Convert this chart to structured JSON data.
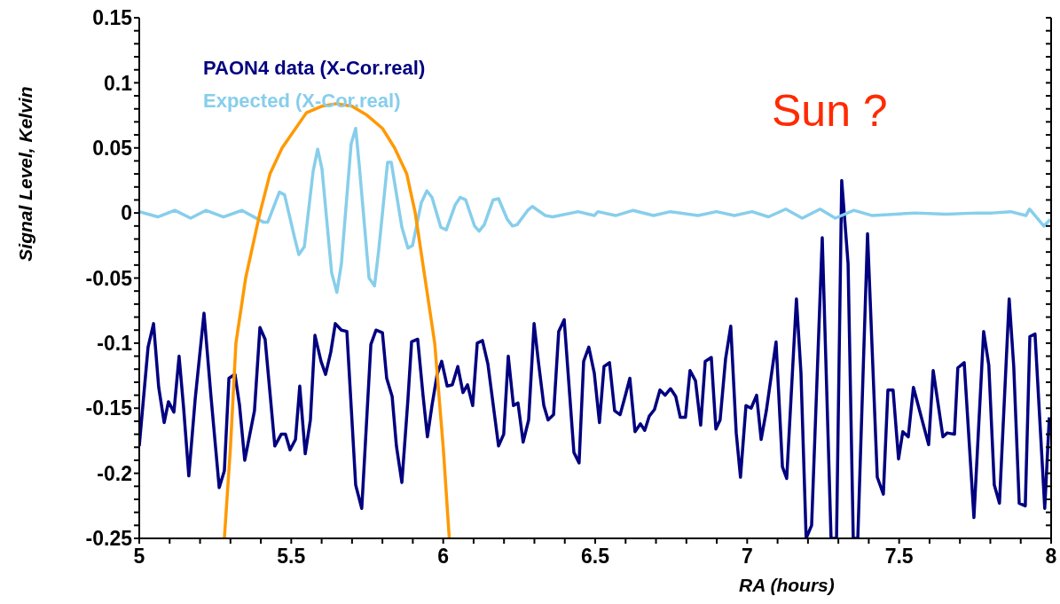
{
  "chart_data": {
    "type": "line",
    "xlabel": "RA (hours)",
    "ylabel": "Signal Level, Kelvin",
    "xlim": [
      5,
      8
    ],
    "ylim": [
      -0.25,
      0.15
    ],
    "xticks": [
      5,
      {
        "value": 5.1,
        "label": null
      },
      {
        "value": 5.2,
        "label": null
      },
      {
        "value": 5.3,
        "label": null
      },
      {
        "value": 5.4,
        "label": null
      },
      5.5,
      {
        "value": 5.6,
        "label": null
      },
      {
        "value": 5.7,
        "label": null
      },
      {
        "value": 5.8,
        "label": null
      },
      {
        "value": 5.9,
        "label": null
      },
      6,
      {
        "value": 6.1,
        "label": null
      },
      {
        "value": 6.2,
        "label": null
      },
      {
        "value": 6.3,
        "label": null
      },
      {
        "value": 6.4,
        "label": null
      },
      6.5,
      {
        "value": 6.6,
        "label": null
      },
      {
        "value": 6.7,
        "label": null
      },
      {
        "value": 6.8,
        "label": null
      },
      {
        "value": 6.9,
        "label": null
      },
      7,
      {
        "value": 7.1,
        "label": null
      },
      {
        "value": 7.2,
        "label": null
      },
      {
        "value": 7.3,
        "label": null
      },
      {
        "value": 7.4,
        "label": null
      },
      7.5,
      {
        "value": 7.6,
        "label": null
      },
      {
        "value": 7.7,
        "label": null
      },
      {
        "value": 7.8,
        "label": null
      },
      {
        "value": 7.9,
        "label": null
      },
      8
    ],
    "yticks": [
      -0.25,
      {
        "value": -0.24,
        "label": null
      },
      {
        "value": -0.23,
        "label": null
      },
      {
        "value": -0.22,
        "label": null
      },
      {
        "value": -0.21,
        "label": null
      },
      -0.2,
      {
        "value": -0.19,
        "label": null
      },
      {
        "value": -0.18,
        "label": null
      },
      {
        "value": -0.17,
        "label": null
      },
      {
        "value": -0.16,
        "label": null
      },
      -0.15,
      {
        "value": -0.14,
        "label": null
      },
      {
        "value": -0.13,
        "label": null
      },
      {
        "value": -0.12,
        "label": null
      },
      {
        "value": -0.11,
        "label": null
      },
      -0.1,
      {
        "value": -0.09,
        "label": null
      },
      {
        "value": -0.08,
        "label": null
      },
      {
        "value": -0.07,
        "label": null
      },
      {
        "value": -0.06,
        "label": null
      },
      -0.05,
      {
        "value": -0.04,
        "label": null
      },
      {
        "value": -0.03,
        "label": null
      },
      {
        "value": -0.02,
        "label": null
      },
      {
        "value": -0.01,
        "label": null
      },
      0,
      {
        "value": 0.01,
        "label": null
      },
      {
        "value": 0.02,
        "label": null
      },
      {
        "value": 0.03,
        "label": null
      },
      {
        "value": 0.04,
        "label": null
      },
      0.05,
      {
        "value": 0.06,
        "label": null
      },
      {
        "value": 0.07,
        "label": null
      },
      {
        "value": 0.08,
        "label": null
      },
      {
        "value": 0.09,
        "label": null
      },
      0.1,
      {
        "value": 0.11,
        "label": null
      },
      {
        "value": 0.12,
        "label": null
      },
      {
        "value": 0.13,
        "label": null
      },
      {
        "value": 0.14,
        "label": null
      },
      0.15
    ],
    "legend": "top left",
    "annotations": [
      "Sun ?"
    ],
    "series": [
      {
        "name": "PAON4 data (X-Cor.real)",
        "color": "#000080",
        "x": [
          5.0,
          5.029,
          5.047,
          5.064,
          5.082,
          5.096,
          5.114,
          5.131,
          5.146,
          5.163,
          5.184,
          5.213,
          5.236,
          5.263,
          5.28,
          5.295,
          5.315,
          5.33,
          5.347,
          5.379,
          5.397,
          5.414,
          5.446,
          5.467,
          5.481,
          5.496,
          5.514,
          5.528,
          5.546,
          5.563,
          5.578,
          5.598,
          5.613,
          5.63,
          5.645,
          5.665,
          5.683,
          5.712,
          5.732,
          5.762,
          5.779,
          5.8,
          5.814,
          5.832,
          5.846,
          5.864,
          5.884,
          5.896,
          5.916,
          5.934,
          5.948,
          5.963,
          5.98,
          5.995,
          6.013,
          6.03,
          6.048,
          6.065,
          6.08,
          6.097,
          6.112,
          6.129,
          6.147,
          6.182,
          6.199,
          6.214,
          6.231,
          6.246,
          6.263,
          6.281,
          6.299,
          6.313,
          6.331,
          6.345,
          6.363,
          6.38,
          6.398,
          6.43,
          6.447,
          6.462,
          6.479,
          6.497,
          6.514,
          6.529,
          6.547,
          6.564,
          6.582,
          6.596,
          6.614,
          6.631,
          6.649,
          6.663,
          6.678,
          6.695,
          6.713,
          6.73,
          6.748,
          6.765,
          6.78,
          6.797,
          6.812,
          6.83,
          6.847,
          6.862,
          6.882,
          6.897,
          6.911,
          6.929,
          6.946,
          6.964,
          6.978,
          6.996,
          7.013,
          7.031,
          7.046,
          7.063,
          7.095,
          7.116,
          7.13,
          7.162,
          7.177,
          7.194,
          7.212,
          7.247,
          7.276,
          7.294,
          7.311,
          7.332,
          7.349,
          7.364,
          7.396,
          7.428,
          7.448,
          7.463,
          7.48,
          7.498,
          7.512,
          7.53,
          7.547,
          7.597,
          7.612,
          7.644,
          7.658,
          7.682,
          7.693,
          7.714,
          7.746,
          7.778,
          7.795,
          7.813,
          7.83,
          7.862,
          7.877,
          7.895,
          7.915,
          7.93,
          7.947,
          7.979,
          7.994
        ],
        "values": [
          -0.179,
          -0.103,
          -0.085,
          -0.134,
          -0.161,
          -0.145,
          -0.153,
          -0.11,
          -0.15,
          -0.202,
          -0.143,
          -0.077,
          -0.141,
          -0.211,
          -0.198,
          -0.127,
          -0.124,
          -0.148,
          -0.19,
          -0.152,
          -0.088,
          -0.097,
          -0.179,
          -0.17,
          -0.17,
          -0.182,
          -0.174,
          -0.133,
          -0.185,
          -0.159,
          -0.094,
          -0.114,
          -0.124,
          -0.107,
          -0.085,
          -0.09,
          -0.091,
          -0.209,
          -0.227,
          -0.101,
          -0.09,
          -0.092,
          -0.127,
          -0.141,
          -0.179,
          -0.207,
          -0.143,
          -0.099,
          -0.097,
          -0.141,
          -0.172,
          -0.148,
          -0.124,
          -0.114,
          -0.133,
          -0.132,
          -0.118,
          -0.138,
          -0.132,
          -0.148,
          -0.1,
          -0.098,
          -0.116,
          -0.179,
          -0.17,
          -0.11,
          -0.148,
          -0.146,
          -0.176,
          -0.159,
          -0.085,
          -0.114,
          -0.148,
          -0.159,
          -0.155,
          -0.091,
          -0.082,
          -0.184,
          -0.192,
          -0.114,
          -0.103,
          -0.123,
          -0.161,
          -0.118,
          -0.115,
          -0.152,
          -0.155,
          -0.143,
          -0.127,
          -0.168,
          -0.162,
          -0.167,
          -0.156,
          -0.151,
          -0.136,
          -0.14,
          -0.135,
          -0.141,
          -0.157,
          -0.157,
          -0.121,
          -0.129,
          -0.163,
          -0.114,
          -0.111,
          -0.166,
          -0.159,
          -0.112,
          -0.087,
          -0.169,
          -0.203,
          -0.148,
          -0.15,
          -0.14,
          -0.174,
          -0.152,
          -0.099,
          -0.195,
          -0.204,
          -0.066,
          -0.123,
          -0.25,
          -0.24,
          -0.019,
          -0.25,
          -0.25,
          0.025,
          -0.039,
          -0.25,
          -0.25,
          -0.016,
          -0.203,
          -0.216,
          -0.136,
          -0.136,
          -0.189,
          -0.168,
          -0.172,
          -0.134,
          -0.178,
          -0.121,
          -0.172,
          -0.169,
          -0.17,
          -0.119,
          -0.115,
          -0.234,
          -0.091,
          -0.117,
          -0.209,
          -0.223,
          -0.066,
          -0.118,
          -0.223,
          -0.225,
          -0.095,
          -0.093,
          -0.227,
          -0.157
        ]
      },
      {
        "name": "Expected (X-Cor.real)",
        "color": "#87ceeb",
        "x": [
          5.0,
          5.061,
          5.117,
          5.169,
          5.219,
          5.277,
          5.338,
          5.408,
          5.423,
          5.461,
          5.478,
          5.51,
          5.525,
          5.543,
          5.572,
          5.587,
          5.601,
          5.633,
          5.65,
          5.665,
          5.697,
          5.712,
          5.724,
          5.756,
          5.774,
          5.788,
          5.817,
          5.829,
          5.864,
          5.884,
          5.899,
          5.928,
          5.946,
          5.963,
          5.992,
          6.01,
          6.039,
          6.056,
          6.074,
          6.103,
          6.118,
          6.135,
          6.164,
          6.182,
          6.211,
          6.228,
          6.243,
          6.278,
          6.293,
          6.336,
          6.36,
          6.444,
          6.497,
          6.509,
          6.509,
          6.567,
          6.625,
          6.692,
          6.747,
          6.838,
          6.899,
          6.958,
          7.016,
          7.07,
          7.127,
          7.181,
          7.24,
          7.29,
          7.351,
          7.412,
          7.552,
          7.654,
          7.756,
          7.806,
          7.867,
          7.917,
          7.929,
          7.976,
          7.997
        ],
        "values": [
          0.001,
          -0.003,
          0.002,
          -0.004,
          0.002,
          -0.003,
          0.002,
          -0.007,
          -0.007,
          0.016,
          0.014,
          -0.018,
          -0.032,
          -0.026,
          0.032,
          0.049,
          0.034,
          -0.046,
          -0.061,
          -0.039,
          0.053,
          0.065,
          0.036,
          -0.05,
          -0.056,
          -0.028,
          0.039,
          0.039,
          -0.011,
          -0.027,
          -0.025,
          0.008,
          0.017,
          0.012,
          -0.011,
          -0.013,
          0.006,
          0.012,
          0.01,
          -0.01,
          -0.014,
          -0.009,
          0.01,
          0.011,
          -0.005,
          -0.01,
          -0.009,
          0.002,
          0.005,
          -0.002,
          -0.003,
          0.001,
          -0.002,
          0.001,
          0.001,
          -0.002,
          0.002,
          -0.002,
          0.001,
          -0.002,
          0.001,
          -0.002,
          0.001,
          -0.003,
          0.003,
          -0.004,
          0.003,
          -0.004,
          0.002,
          -0.002,
          0.0,
          -0.001,
          0.0,
          0.0,
          0.001,
          -0.002,
          0.003,
          -0.01,
          -0.005
        ]
      },
      {
        "color": "#ff9900",
        "x": [
          5.28,
          5.3,
          5.318,
          5.35,
          5.397,
          5.43,
          5.47,
          5.55,
          5.6,
          5.648,
          5.7,
          5.75,
          5.8,
          5.84,
          5.88,
          5.908,
          5.94,
          5.972,
          6.0,
          6.02
        ],
        "values": [
          -0.25,
          -0.18,
          -0.1,
          -0.05,
          0.0,
          0.03,
          0.05,
          0.077,
          0.082,
          0.084,
          0.082,
          0.075,
          0.065,
          0.05,
          0.03,
          0.0,
          -0.05,
          -0.1,
          -0.18,
          -0.25
        ]
      }
    ]
  }
}
